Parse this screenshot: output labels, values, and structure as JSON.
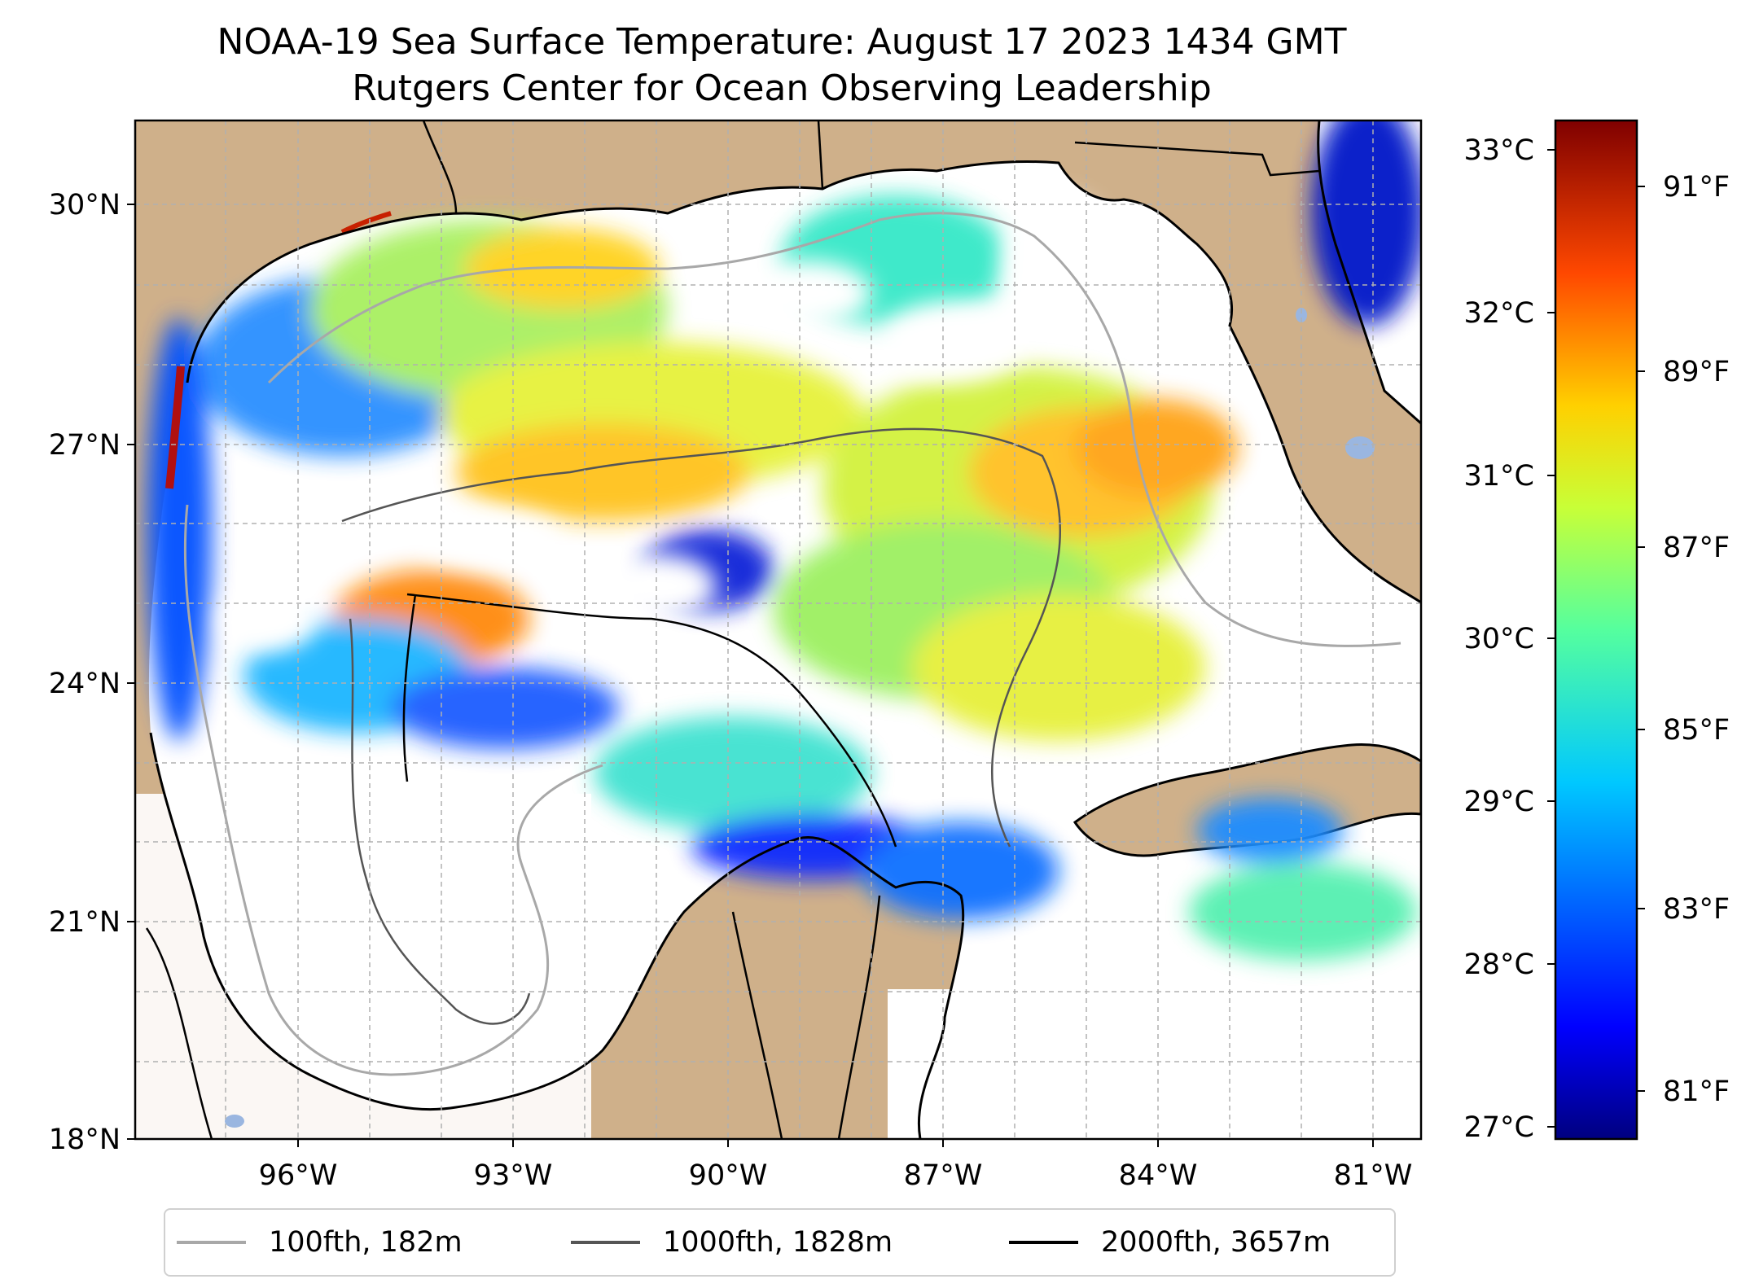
{
  "title": "NOAA-19 Sea Surface Temperature: August 17 2023 1434 GMT",
  "subtitle": "Rutgers Center for Ocean Observing Leadership",
  "colors": {
    "land": "#cfb08a",
    "no_data": "#ffffff",
    "lake": "#9ab6e0",
    "grid": "#b0b0b0",
    "contour_100": "#a8a8a8",
    "contour_1000": "#555555",
    "contour_2000": "#000000"
  },
  "map": {
    "lat_ticks": [
      "30°N",
      "27°N",
      "24°N",
      "21°N",
      "18°N"
    ],
    "lon_ticks": [
      "96°W",
      "93°W",
      "90°W",
      "87°W",
      "84°W",
      "81°W"
    ]
  },
  "colorbar": {
    "celsius_ticks": [
      "33°C",
      "32°C",
      "31°C",
      "30°C",
      "29°C",
      "28°C",
      "27°C"
    ],
    "fahrenheit_ticks": [
      "91°F",
      "89°F",
      "87°F",
      "85°F",
      "83°F",
      "81°F"
    ],
    "colormap": "jet"
  },
  "legend": [
    {
      "label": "100fth, 182m",
      "color": "#a8a8a8"
    },
    {
      "label": "1000fth, 1828m",
      "color": "#555555"
    },
    {
      "label": "2000fth, 3657m",
      "color": "#000000"
    }
  ]
}
